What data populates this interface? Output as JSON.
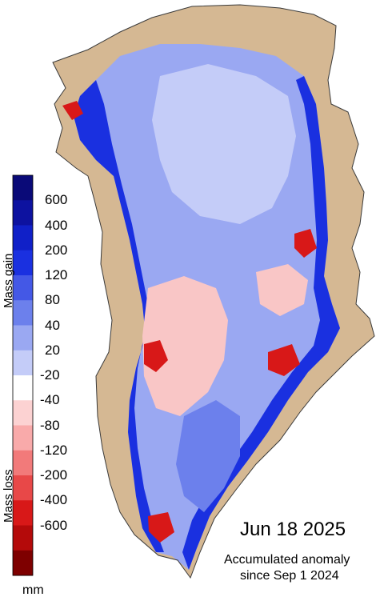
{
  "legend": {
    "ticks": [
      "600",
      "400",
      "200",
      "120",
      "80",
      "40",
      "20",
      "-20",
      "-40",
      "-80",
      "-120",
      "-200",
      "-400",
      "-600"
    ],
    "gain_label": "Mass gain",
    "loss_label": "Mass loss",
    "unit": "mm",
    "colors": [
      "#0a0a78",
      "#0d12a0",
      "#1020c8",
      "#1a30e0",
      "#4458e6",
      "#6c80ec",
      "#9aa8f2",
      "#c4ccf8",
      "#ffffff",
      "#fcd2d2",
      "#f9aaaa",
      "#f27a7a",
      "#e84848",
      "#d81818",
      "#b40a0a",
      "#7e0000"
    ]
  },
  "date": "Jun 18 2025",
  "caption_line1": "Accumulated anomaly",
  "caption_line2": "since Sep 1 2024",
  "colors": {
    "land": "#d5b893",
    "coast_line": "#3a3a3a",
    "ice_base": "#9aa8f2",
    "ice_light": "#c4ccf8",
    "ice_mid": "#6c80ec",
    "ice_dark": "#1a30e0",
    "loss_light": "#f9c6c6",
    "loss_dark": "#d81818"
  }
}
